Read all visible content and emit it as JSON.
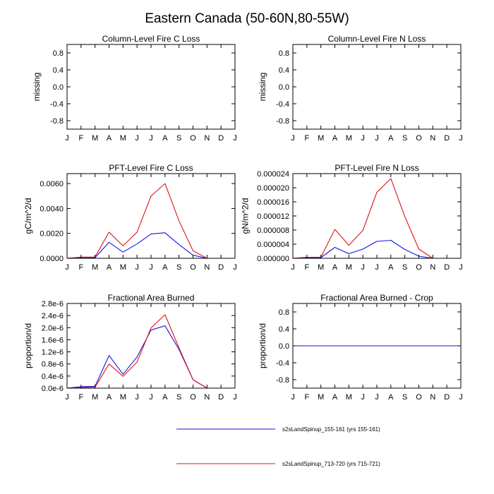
{
  "title": "Eastern Canada (50-60N,80-55W)",
  "months": [
    "J",
    "F",
    "M",
    "A",
    "M",
    "J",
    "J",
    "A",
    "S",
    "O",
    "N",
    "D",
    "J"
  ],
  "legend": [
    {
      "label": "s2sLandSpinup_155-161 (yrs 155-161)",
      "color": "#1515e0"
    },
    {
      "label": "s2sLandSpinup_713-720 (yrs 715-721)",
      "color": "#e01515"
    }
  ],
  "chart_data": [
    {
      "type": "line",
      "title": "Column-Level Fire C Loss",
      "ylabel": "missing",
      "ylim": [
        -1,
        1
      ],
      "yticks": [
        -0.8,
        -0.4,
        0.0,
        0.4,
        0.8
      ],
      "ytick_labels": [
        "-0.8",
        "-0.4",
        "0.0",
        "0.4",
        "0.8"
      ],
      "series": []
    },
    {
      "type": "line",
      "title": "Column-Level Fire N Loss",
      "ylabel": "missing",
      "ylim": [
        -1,
        1
      ],
      "yticks": [
        -0.8,
        -0.4,
        0.0,
        0.4,
        0.8
      ],
      "ytick_labels": [
        "-0.8",
        "-0.4",
        "0.0",
        "0.4",
        "0.8"
      ],
      "series": []
    },
    {
      "type": "line",
      "title": "PFT-Level Fire C Loss",
      "ylabel": "gC/m^2/d",
      "ylim": [
        0,
        0.0068
      ],
      "yticks": [
        0,
        0.002,
        0.004,
        0.006
      ],
      "ytick_labels": [
        "0.0000",
        "0.0020",
        "0.0040",
        "0.0060"
      ],
      "series": [
        {
          "name": "s2sLandSpinup_155-161 (yrs 155-161)",
          "color": "#1515e0",
          "values": [
            0.0,
            5e-05,
            5e-05,
            0.00128,
            0.0005,
            0.00115,
            0.00195,
            0.00205,
            0.0011,
            0.00025,
            0.0,
            0.0,
            0.0
          ]
        },
        {
          "name": "s2sLandSpinup_713-720 (yrs 715-721)",
          "color": "#e01515",
          "values": [
            0.0,
            0.0001,
            0.0001,
            0.0021,
            0.001,
            0.0021,
            0.005,
            0.006,
            0.003,
            0.0006,
            0.0,
            0.0,
            0.0
          ]
        }
      ]
    },
    {
      "type": "line",
      "title": "PFT-Level Fire N Loss",
      "ylabel": "gN/m^2/d",
      "ylim": [
        0,
        2.4e-05
      ],
      "yticks": [
        0,
        4e-06,
        8e-06,
        1.2e-05,
        1.6e-05,
        2e-05,
        2.4e-05
      ],
      "ytick_labels": [
        "0.000000",
        "0.000004",
        "0.000008",
        "0.000012",
        "0.000016",
        "0.000020",
        "0.000024"
      ],
      "series": [
        {
          "name": "s2sLandSpinup_155-161 (yrs 155-161)",
          "color": "#1515e0",
          "values": [
            0.0,
            2e-07,
            2e-07,
            3.1e-06,
            1.3e-06,
            2.6e-06,
            4.8e-06,
            5.1e-06,
            2.5e-06,
            6e-07,
            0.0,
            0.0,
            0.0
          ]
        },
        {
          "name": "s2sLandSpinup_713-720 (yrs 715-721)",
          "color": "#e01515",
          "values": [
            0.0,
            3e-07,
            3e-07,
            8.2e-06,
            3.7e-06,
            7.9e-06,
            1.87e-05,
            2.26e-05,
            1.18e-05,
            2.6e-06,
            0.0,
            0.0,
            0.0
          ]
        }
      ]
    },
    {
      "type": "line",
      "title": "Fractional Area Burned",
      "ylabel": "proportion/d",
      "ylim": [
        0,
        2.8e-06
      ],
      "yticks": [
        0,
        4e-07,
        8e-07,
        1.2e-06,
        1.6e-06,
        2e-06,
        2.4e-06,
        2.8e-06
      ],
      "ytick_labels": [
        "0.0e-6",
        "0.4e-6",
        "0.8e-6",
        "1.2e-6",
        "1.6e-6",
        "2.0e-6",
        "2.4e-6",
        "2.8e-6"
      ],
      "series": [
        {
          "name": "s2sLandSpinup_155-161 (yrs 155-161)",
          "color": "#1515e0",
          "values": [
            0.0,
            5e-08,
            6e-08,
            1.08e-06,
            4.6e-07,
            1.03e-06,
            1.92e-06,
            2.06e-06,
            1.28e-06,
            2.8e-07,
            0.0,
            0.0,
            0.0
          ]
        },
        {
          "name": "s2sLandSpinup_713-720 (yrs 715-721)",
          "color": "#e01515",
          "values": [
            0.0,
            2e-08,
            3e-08,
            8e-07,
            3.9e-07,
            8.6e-07,
            1.99e-06,
            2.43e-06,
            1.33e-06,
            2.8e-07,
            0.0,
            0.0,
            0.0
          ]
        }
      ]
    },
    {
      "type": "line",
      "title": "Fractional Area Burned - Crop",
      "ylabel": "proportion/d",
      "ylim": [
        -1,
        1
      ],
      "yticks": [
        -0.8,
        -0.4,
        0.0,
        0.4,
        0.8
      ],
      "ytick_labels": [
        "-0.8",
        "-0.4",
        "0.0",
        "0.4",
        "0.8"
      ],
      "series": [
        {
          "name": "s2sLandSpinup_713-720 (yrs 715-721)",
          "color": "#e01515",
          "values": [
            0,
            0,
            0,
            0,
            0,
            0,
            0,
            0,
            0,
            0,
            0,
            0,
            0
          ]
        },
        {
          "name": "s2sLandSpinup_155-161 (yrs 155-161)",
          "color": "#1515e0",
          "values": [
            0,
            0,
            0,
            0,
            0,
            0,
            0,
            0,
            0,
            0,
            0,
            0,
            0
          ]
        }
      ]
    }
  ]
}
